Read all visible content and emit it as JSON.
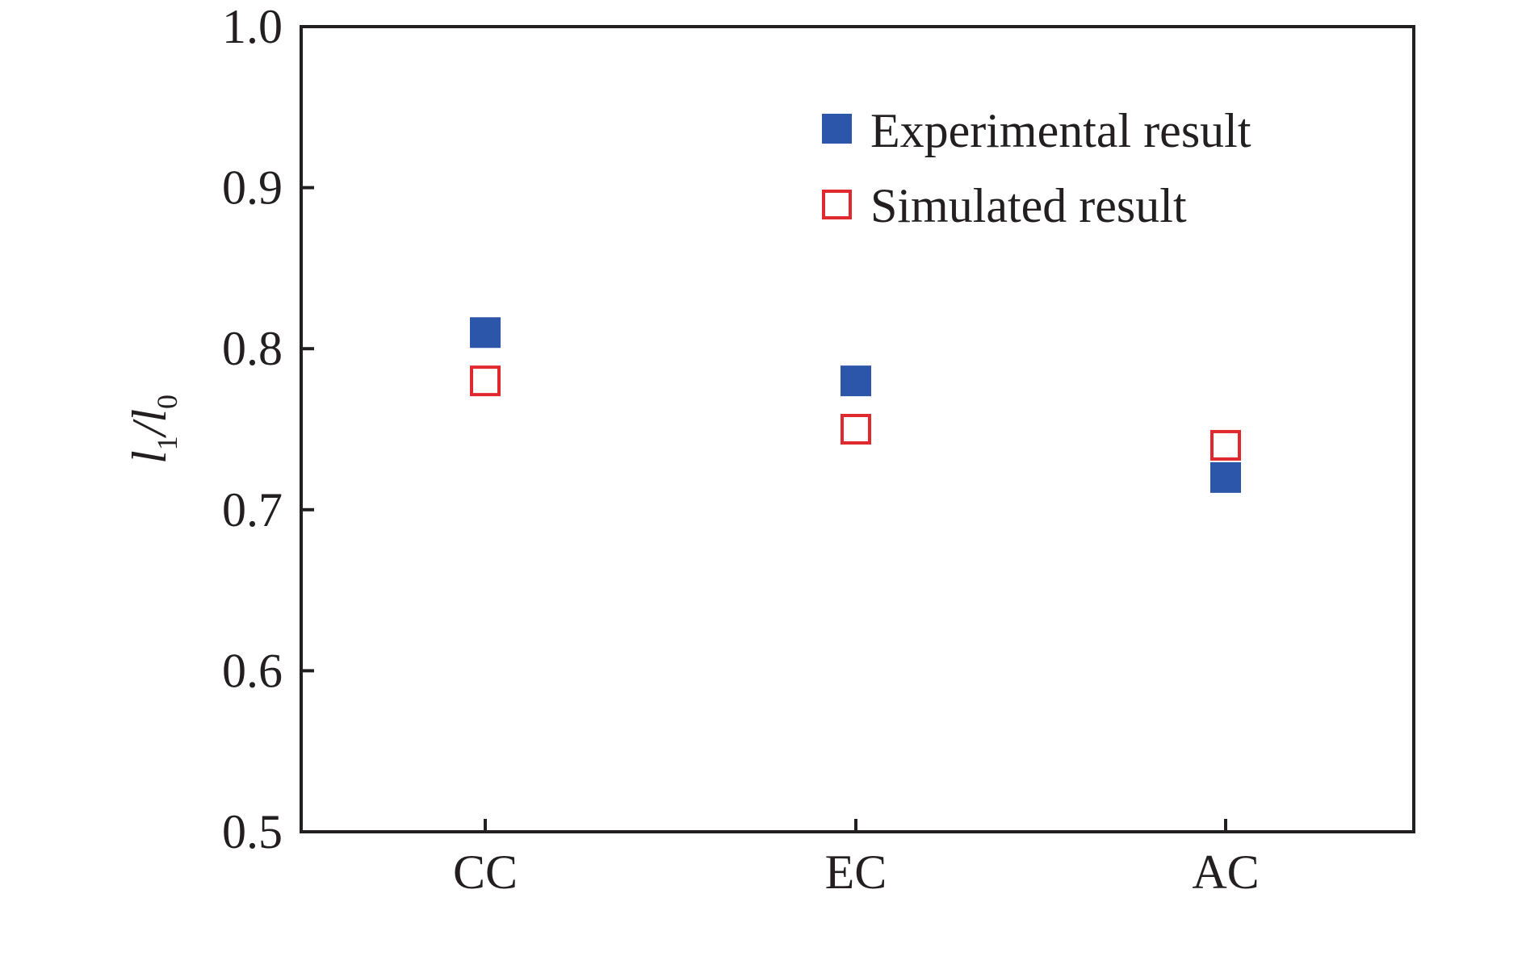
{
  "chart_data": {
    "type": "scatter",
    "title": "",
    "xlabel": "",
    "ylabel": {
      "main": "l",
      "sub1": "1",
      "slash": "/",
      "sub0": "0"
    },
    "categories": [
      "CC",
      "EC",
      "AC"
    ],
    "ylim": [
      0.5,
      1.0
    ],
    "yticks": [
      "0.5",
      "0.6",
      "0.7",
      "0.8",
      "0.9",
      "1.0"
    ],
    "grid": false,
    "legend_position": "top-right",
    "series": [
      {
        "name": "Experimental result",
        "marker": "filled-square",
        "color": "#2b56aa",
        "values": [
          0.81,
          0.78,
          0.72
        ]
      },
      {
        "name": "Simulated result",
        "marker": "open-square",
        "color": "#e0292e",
        "values": [
          0.78,
          0.75,
          0.74
        ]
      }
    ]
  }
}
